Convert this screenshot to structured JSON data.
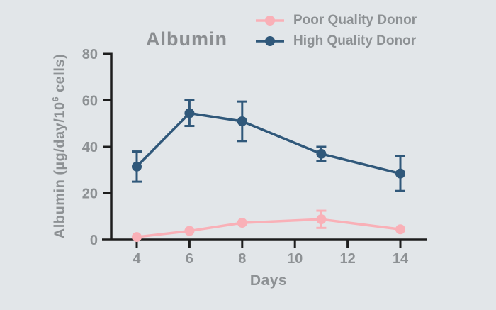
{
  "colors": {
    "background": "#e2e6e9",
    "axis": "#1d1d1d",
    "text_gray": "#8d9194",
    "title_gray": "#8b8e91",
    "poor_quality_pink": "#f9b0b7",
    "high_quality_navy": "#30587a"
  },
  "labels": {
    "ylabel_prefix": "Albumin (µg/day/10",
    "ylabel_sup": "6",
    "ylabel_suffix": " cells)"
  },
  "chart_data": {
    "type": "line",
    "title": "Albumin",
    "xlabel": "Days",
    "ylabel": "Albumin (µg/day/10⁶ cells)",
    "x": [
      4,
      6,
      8,
      11,
      14
    ],
    "x_ticks": [
      4,
      6,
      8,
      10,
      12,
      14
    ],
    "y_ticks": [
      0,
      20,
      40,
      60,
      80
    ],
    "xlim": [
      2.7,
      15
    ],
    "ylim": [
      0,
      80
    ],
    "grid": false,
    "legend_position": "top-right",
    "error_bars": true,
    "series": [
      {
        "name": "Poor Quality Donor",
        "color": "#f9b0b7",
        "values": [
          1.2,
          3.8,
          7.3,
          8.8,
          4.5
        ],
        "errors": [
          0,
          0,
          0,
          3.7,
          0
        ]
      },
      {
        "name": "High Quality Donor",
        "color": "#30587a",
        "values": [
          31.5,
          54.5,
          51,
          37,
          28.5
        ],
        "errors": [
          6.5,
          5.5,
          8.5,
          3,
          7.5
        ]
      }
    ]
  }
}
